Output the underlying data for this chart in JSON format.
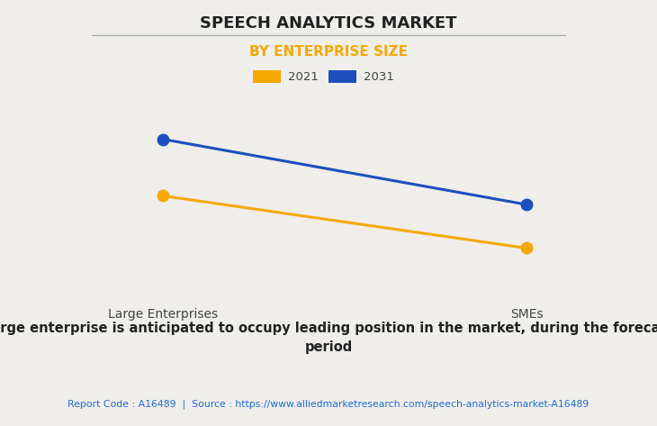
{
  "title": "SPEECH ANALYTICS MARKET",
  "subtitle": "BY ENTERPRISE SIZE",
  "categories": [
    "Large Enterprises",
    "SMEs"
  ],
  "series": [
    {
      "label": "2021",
      "color": "#F5A800",
      "values": [
        0.62,
        0.38
      ]
    },
    {
      "label": "2031",
      "color": "#1F4EBD",
      "values": [
        0.88,
        0.58
      ]
    }
  ],
  "ylim": [
    0.15,
    1.05
  ],
  "background_color": "#f0eeeb",
  "plot_bg_color": "#f0eeeb",
  "title_fontsize": 13,
  "subtitle_fontsize": 11,
  "subtitle_color": "#F5A800",
  "annotation_text": "Large enterprise is anticipated to occupy leading position in the market, during the forecast\nperiod",
  "footer_text": "Report Code : A16489  |  Source : https://www.alliedmarketresearch.com/speech-analytics-market-A16489",
  "footer_color": "#1F6BDE",
  "grid_color": "#cccccc",
  "marker_size": 9,
  "title_color": "#222222"
}
